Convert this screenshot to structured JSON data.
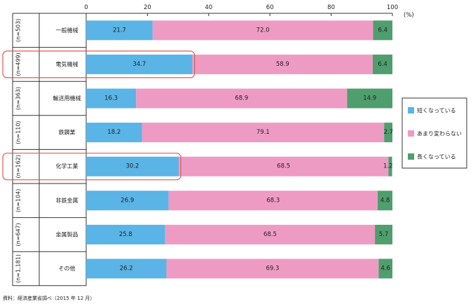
{
  "chart_data": {
    "type": "bar",
    "orientation": "horizontal",
    "stacked": true,
    "unit": "(%)",
    "xlim": [
      0,
      100
    ],
    "x_ticks": [
      0,
      20,
      40,
      60,
      80,
      100
    ],
    "categories": [
      "一般機械",
      "電気機械",
      "輸送用機械",
      "鉄鋼業",
      "化学工業",
      "非鉄金属",
      "金属製品",
      "その他"
    ],
    "sample_sizes": [
      "(n=503)",
      "(n=499)",
      "(n=363)",
      "(n=110)",
      "(n=162)",
      "(n=104)",
      "(n=647)",
      "(n=1,181)"
    ],
    "series": [
      {
        "name": "短くなっている",
        "color": "#5ab4e6",
        "values": [
          21.7,
          34.7,
          16.3,
          18.2,
          30.2,
          26.9,
          25.8,
          26.2
        ]
      },
      {
        "name": "あまり変わらない",
        "color": "#ee9bc4",
        "values": [
          72.0,
          58.9,
          68.9,
          79.1,
          68.5,
          68.3,
          68.5,
          69.3
        ]
      },
      {
        "name": "長くなっている",
        "color": "#4f9e6d",
        "values": [
          6.4,
          6.4,
          14.9,
          2.7,
          1.2,
          4.8,
          5.7,
          4.6
        ]
      }
    ],
    "value_labels": [
      [
        "21.7",
        "72.0",
        "6.4"
      ],
      [
        "34.7",
        "58.9",
        "6.4"
      ],
      [
        "16.3",
        "68.9",
        "14.9"
      ],
      [
        "18.2",
        "79.1",
        "2.7"
      ],
      [
        "30.2",
        "68.5",
        "1.2"
      ],
      [
        "26.9",
        "68.3",
        "4.8"
      ],
      [
        "25.8",
        "68.5",
        "5.7"
      ],
      [
        "26.2",
        "69.3",
        "4.6"
      ]
    ],
    "highlighted_categories": [
      "電気機械",
      "化学工業"
    ],
    "highlight_color": "#e05a4a",
    "legend_position": "right",
    "grid": false
  },
  "source_note": "資料：経済産業省調べ（2015 年 12 月）"
}
